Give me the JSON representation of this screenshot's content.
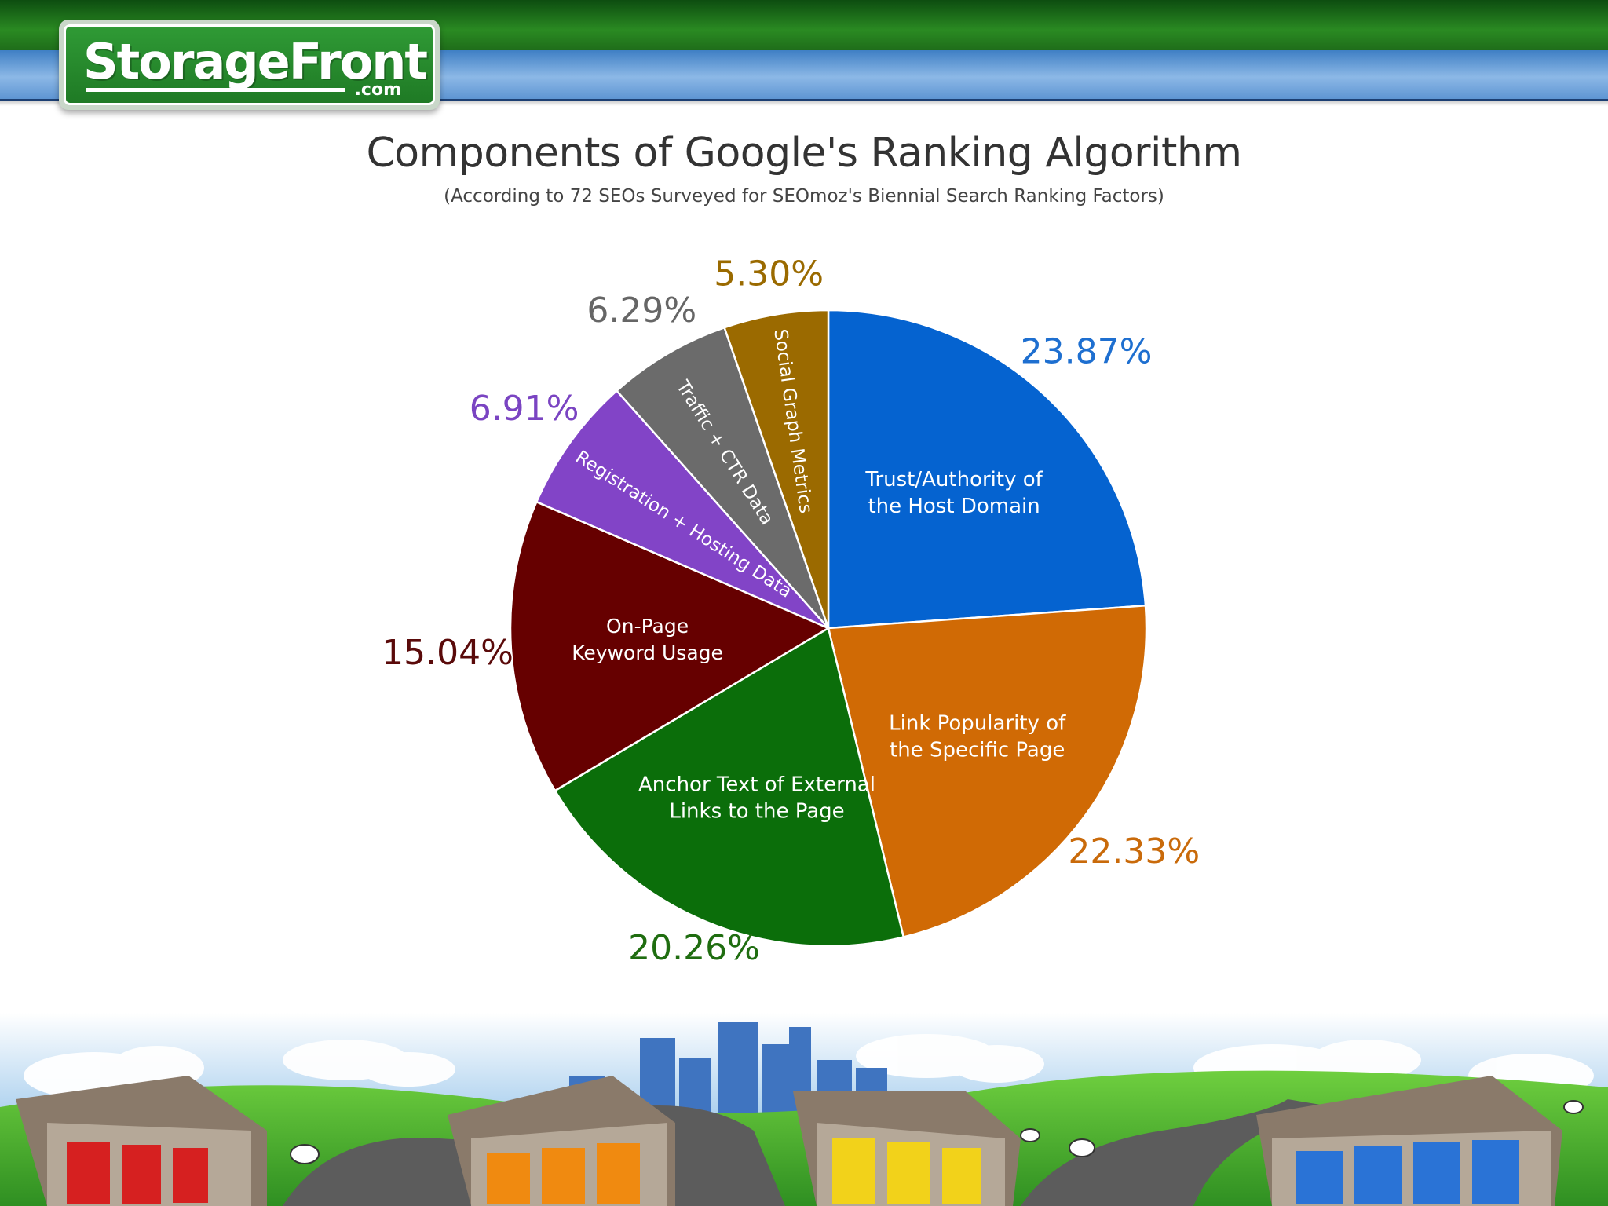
{
  "logo": {
    "name": "StorageFront",
    "suffix": ".com"
  },
  "chart_data": {
    "type": "pie",
    "title": "Components of Google's Ranking Algorithm",
    "subtitle": "(According to 72 SEOs Surveyed for SEOmoz's Biennial Search Ranking Factors)",
    "slices": [
      {
        "label": "Trust/Authority of the Host Domain",
        "label_lines": [
          "Trust/Authority of",
          "the Host Domain"
        ],
        "value": 23.87,
        "value_label": "23.87%",
        "color": "#0563d0"
      },
      {
        "label": "Link Popularity of the Specific Page",
        "label_lines": [
          "Link Popularity of",
          "the Specific Page"
        ],
        "value": 22.33,
        "value_label": "22.33%",
        "color": "#d06a05"
      },
      {
        "label": "Anchor Text of External Links to the Page",
        "label_lines": [
          "Anchor Text of External",
          "Links to the Page"
        ],
        "value": 20.26,
        "value_label": "20.26%",
        "color": "#0b6e0a"
      },
      {
        "label": "On-Page Keyword Usage",
        "label_lines": [
          "On-Page",
          "Keyword Usage"
        ],
        "value": 15.04,
        "value_label": "15.04%",
        "color": "#660000"
      },
      {
        "label": "Registration + Hosting Data",
        "label_lines": [
          "Registration + Hosting Data"
        ],
        "value": 6.91,
        "value_label": "6.91%",
        "color": "#8244c7"
      },
      {
        "label": "Traffic + CTR Data",
        "label_lines": [
          "Traffic + CTR Data"
        ],
        "value": 6.29,
        "value_label": "6.29%",
        "color": "#6b6b6b"
      },
      {
        "label": "Social Graph Metrics",
        "label_lines": [
          "Social Graph Metrics"
        ],
        "value": 5.3,
        "value_label": "5.30%",
        "color": "#9b6a00"
      }
    ],
    "value_label_colors": [
      "#1e6fd0",
      "#c96a0a",
      "#1f6d10",
      "#5a0a0a",
      "#7a44c2",
      "#666666",
      "#9a6a00"
    ]
  }
}
